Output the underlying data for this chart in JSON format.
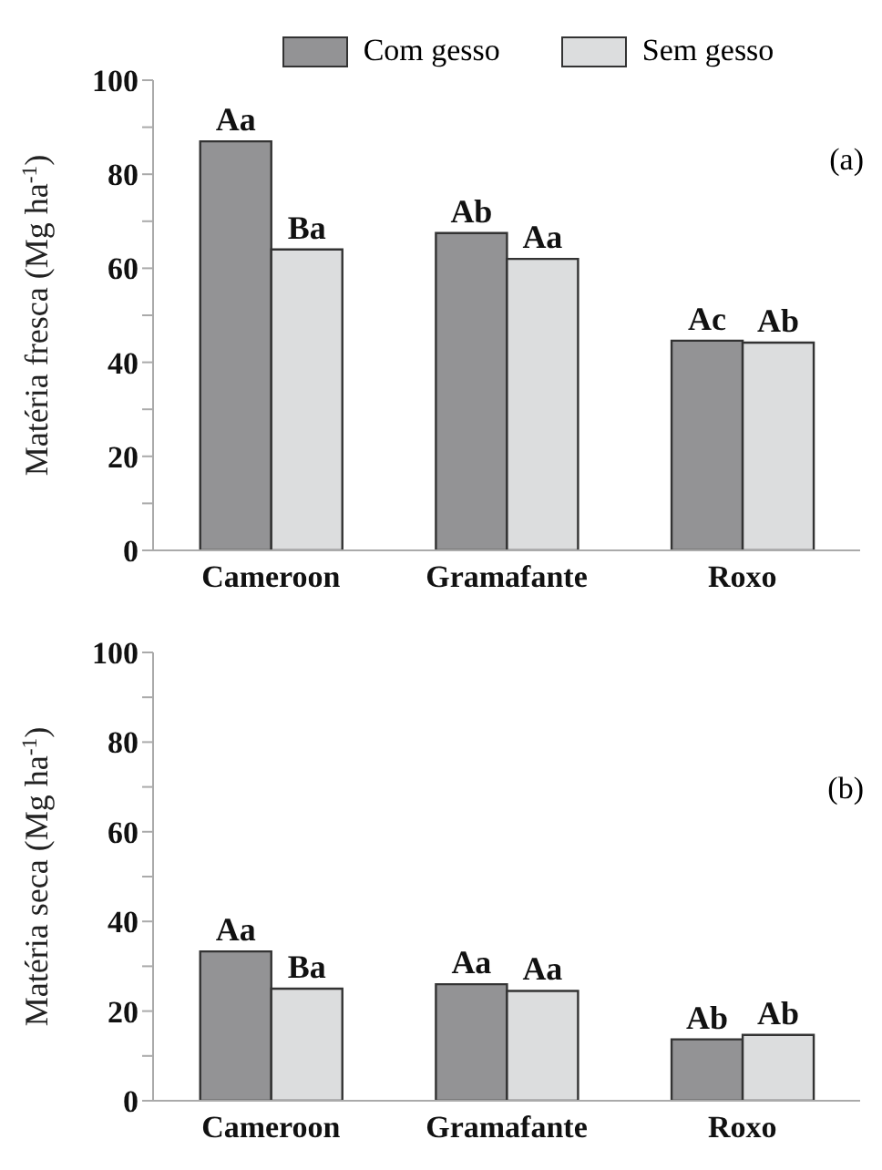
{
  "chart_data": [
    {
      "type": "bar",
      "ylabel": "Matéria fresca (Mg ha$^{-1}$)",
      "categories": [
        "Cameroon",
        "Gramafante",
        "Roxo"
      ],
      "series": [
        {
          "name": "Com gesso",
          "color": "#939395",
          "values": [
            87,
            67.5,
            44.6
          ],
          "value_labels": [
            "Aa",
            "Ab",
            "Ac"
          ]
        },
        {
          "name": "Sem gesso",
          "color": "#dcddde",
          "values": [
            64,
            62,
            44.2
          ],
          "value_labels": [
            "Ba",
            "Aa",
            "Ab"
          ]
        }
      ],
      "ylim": [
        0,
        100
      ],
      "yticks": [
        0,
        {
          "value": 10,
          "label": null
        },
        20,
        {
          "value": 30,
          "label": null
        },
        40,
        {
          "value": 50,
          "label": null
        },
        60,
        {
          "value": 70,
          "label": null
        },
        80,
        {
          "value": 90,
          "label": null
        },
        100
      ],
      "legend": "top",
      "annotations": [
        "(a)"
      ]
    },
    {
      "type": "bar",
      "ylabel": "Matéria seca (Mg ha$^{-1}$)",
      "categories": [
        "Cameroon",
        "Gramafante",
        "Roxo"
      ],
      "series": [
        {
          "color": "#939395",
          "values": [
            33.3,
            26,
            13.7
          ],
          "value_labels": [
            "Aa",
            "Aa",
            "Ab"
          ]
        },
        {
          "color": "#dcddde",
          "values": [
            25,
            24.5,
            14.7
          ],
          "value_labels": [
            "Ba",
            "Aa",
            "Ab"
          ]
        }
      ],
      "ylim": [
        0,
        100
      ],
      "yticks": [
        0,
        {
          "value": 10,
          "label": null
        },
        20,
        {
          "value": 30,
          "label": null
        },
        40,
        {
          "value": 50,
          "label": null
        },
        60,
        {
          "value": 70,
          "label": null
        },
        80,
        {
          "value": 90,
          "label": null
        },
        100
      ],
      "annotations": [
        "(b)"
      ]
    }
  ]
}
